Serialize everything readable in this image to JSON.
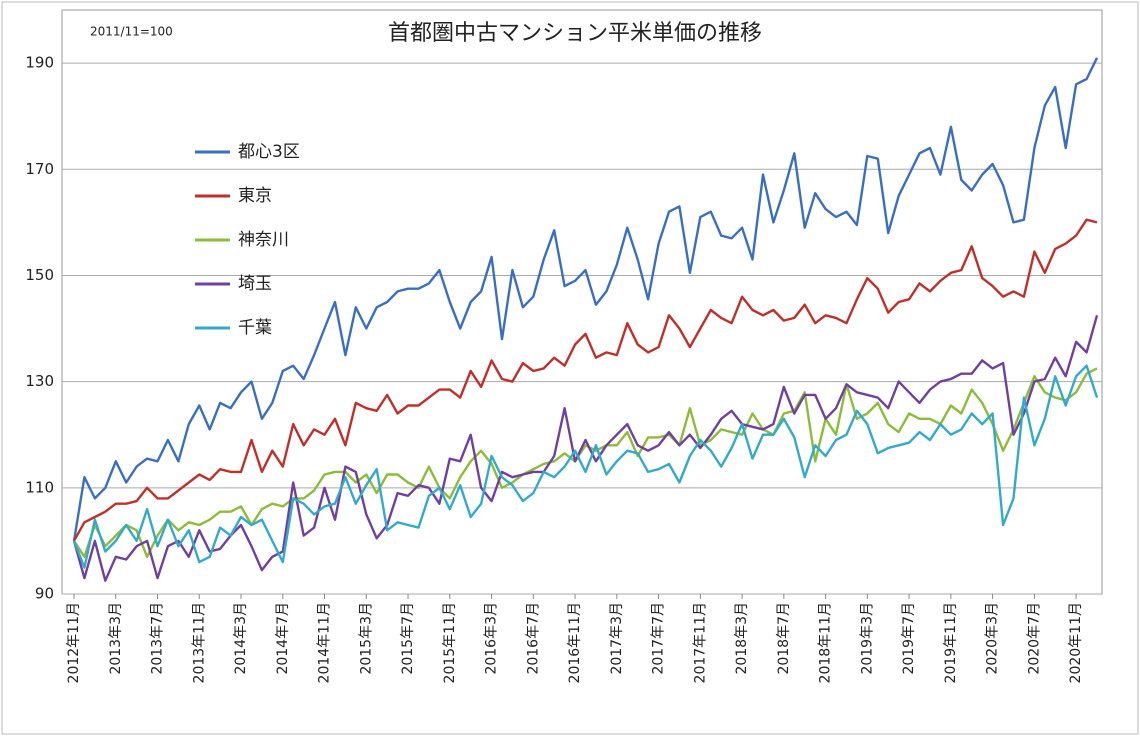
{
  "chart_data": {
    "type": "line",
    "title": "首都圏中古マンション平米単価の推移",
    "subtitle": "2011/11=100",
    "categories": [
      "2012年11月",
      null,
      null,
      null,
      "2013年3月",
      null,
      null,
      null,
      "2013年7月",
      null,
      null,
      null,
      "2013年11月",
      null,
      null,
      null,
      "2014年3月",
      null,
      null,
      null,
      "2014年7月",
      null,
      null,
      null,
      "2014年11月",
      null,
      null,
      null,
      "2015年3月",
      null,
      null,
      null,
      "2015年7月",
      null,
      null,
      null,
      "2015年11月",
      null,
      null,
      null,
      "2016年3月",
      null,
      null,
      null,
      "2016年7月",
      null,
      null,
      null,
      "2016年11月",
      null,
      null,
      null,
      "2017年3月",
      null,
      null,
      null,
      "2017年7月",
      null,
      null,
      null,
      "2017年11月",
      null,
      null,
      null,
      "2018年3月",
      null,
      null,
      null,
      "2018年7月",
      null,
      null,
      null,
      "2018年11月",
      null,
      null,
      null,
      "2019年3月",
      null,
      null,
      null,
      "2019年7月",
      null,
      null,
      null,
      "2019年11月",
      null,
      null,
      null,
      "2020年3月",
      null,
      null,
      null,
      "2020年7月",
      null,
      null,
      null,
      "2020年11月",
      null,
      null
    ],
    "series": [
      {
        "name": "都心3区",
        "color": "#3a6fc0",
        "values": [
          100,
          112,
          108,
          110,
          115,
          111,
          114,
          115.5,
          115,
          119,
          115,
          122,
          125.5,
          121,
          126,
          125,
          128,
          130,
          123,
          126,
          132,
          133,
          130.5,
          135,
          140,
          145,
          135,
          144,
          140,
          144,
          145,
          147,
          147.5,
          147.5,
          148.5,
          151,
          145,
          140,
          145,
          147,
          153.5,
          138,
          151,
          144,
          146,
          153,
          158.5,
          148,
          149,
          151,
          144.5,
          147,
          152,
          159,
          153,
          145.5,
          156,
          162,
          163,
          150.5,
          161,
          162,
          157.5,
          157,
          159,
          153,
          169,
          160,
          166,
          173,
          159,
          165.5,
          162.5,
          161,
          162,
          159.5,
          172.5,
          172,
          158,
          165,
          169,
          173,
          174,
          169,
          178,
          168,
          166,
          169,
          171,
          167,
          160,
          160.5,
          174,
          182,
          185.5,
          174,
          186,
          187,
          191
        ]
      },
      {
        "name": "東京",
        "color": "#c0302a",
        "values": [
          100,
          103.5,
          104.5,
          105.5,
          107,
          107,
          107.5,
          110,
          108,
          108,
          109.5,
          111,
          112.5,
          111.5,
          113.5,
          113,
          113,
          119,
          113,
          117,
          114,
          122,
          118,
          121,
          120,
          123,
          118,
          126,
          125,
          124.5,
          127.5,
          124,
          125.5,
          125.5,
          127,
          128.5,
          128.5,
          127,
          132,
          129,
          134,
          130.5,
          130,
          133.5,
          132,
          132.5,
          134.5,
          133,
          137,
          139,
          134.5,
          135.5,
          135,
          141,
          137,
          135.5,
          136.5,
          142.5,
          140,
          136.5,
          140,
          143.5,
          142,
          141,
          146,
          143.5,
          142.5,
          143.5,
          141.5,
          142,
          144.5,
          141,
          142.5,
          142,
          141,
          145.5,
          149.5,
          147.5,
          143,
          145,
          145.5,
          148.5,
          147,
          149,
          150.5,
          151,
          155.5,
          149.5,
          148,
          146,
          147,
          146,
          154.5,
          150.5,
          155,
          156,
          157.5,
          160.5,
          160
        ]
      },
      {
        "name": "神奈川",
        "color": "#8dbb3a",
        "values": [
          100,
          97,
          103,
          99,
          101,
          103,
          102,
          97,
          101,
          104,
          102,
          103.5,
          103,
          104,
          105.5,
          105.5,
          106.5,
          103,
          106,
          107,
          106.5,
          108,
          108,
          109.5,
          112.5,
          113,
          113,
          111,
          112.5,
          109,
          112.5,
          112.5,
          111,
          110,
          114,
          110,
          108,
          112,
          115,
          117,
          114.5,
          110,
          111,
          112.5,
          113.5,
          114.5,
          115,
          116.5,
          115,
          118,
          117,
          118,
          118,
          120.5,
          116,
          119.5,
          119.5,
          120,
          118,
          125,
          118,
          119,
          121,
          120.5,
          120,
          124,
          121,
          120,
          124,
          124.5,
          128,
          115,
          123,
          120,
          129.5,
          123,
          124,
          126,
          122,
          120.5,
          124,
          123,
          123,
          122,
          125.5,
          124,
          128.5,
          126,
          122,
          117,
          121,
          126,
          131,
          128,
          127,
          126.5,
          128,
          131.5,
          132.5
        ]
      },
      {
        "name": "埼玉",
        "color": "#7040a0",
        "values": [
          100,
          93,
          100,
          92.5,
          97,
          96.5,
          99,
          100,
          93,
          99,
          100,
          97,
          102,
          98,
          98.5,
          101,
          103,
          99,
          94.5,
          97,
          98,
          111,
          101,
          102.5,
          110,
          104,
          114,
          113,
          105,
          100.5,
          103,
          109,
          108.5,
          110.5,
          110,
          107,
          115.5,
          115,
          120,
          110,
          107.5,
          113,
          112,
          112.5,
          113,
          113,
          116,
          125,
          115,
          119,
          115,
          118,
          120,
          122,
          118,
          117,
          118,
          120.5,
          118,
          120,
          117.5,
          120,
          123,
          124.5,
          122,
          121.5,
          121,
          122,
          129,
          124,
          127.5,
          127.5,
          123,
          125,
          129.5,
          128,
          127.5,
          127,
          125,
          130,
          128,
          126,
          128.5,
          130,
          130.5,
          131.5,
          131.5,
          134,
          132.5,
          133.5,
          120,
          124,
          130,
          130.5,
          134.5,
          131,
          137.5,
          135.5,
          142.5
        ]
      },
      {
        "name": "千葉",
        "color": "#33aacc",
        "values": [
          100,
          95,
          104,
          98,
          100,
          103,
          100,
          106,
          99,
          104,
          99,
          102,
          96,
          97,
          102.5,
          101,
          104.5,
          103,
          104,
          100,
          96,
          108,
          107,
          105,
          106.5,
          107,
          112,
          107,
          110.5,
          113.5,
          102,
          103.5,
          103,
          102.5,
          108.5,
          110,
          106,
          110.5,
          104.5,
          107,
          116,
          112,
          110.5,
          107.5,
          109,
          113,
          112,
          114,
          117,
          113,
          118,
          112.5,
          115,
          117,
          116.5,
          113,
          113.5,
          114.5,
          111,
          116,
          119,
          117,
          114,
          117.5,
          122,
          115.5,
          120,
          120,
          123,
          119.5,
          112,
          118,
          116,
          119,
          120,
          124.5,
          122,
          116.5,
          117.5,
          118,
          118.5,
          120.5,
          119,
          122,
          120,
          121,
          124,
          122,
          124,
          103,
          108,
          127,
          118,
          123,
          131,
          125.5,
          131,
          133,
          127
        ]
      }
    ],
    "ylim": [
      90,
      200
    ],
    "yticks": [
      90,
      110,
      130,
      150,
      170,
      190
    ],
    "grid": true,
    "legend": "left"
  }
}
